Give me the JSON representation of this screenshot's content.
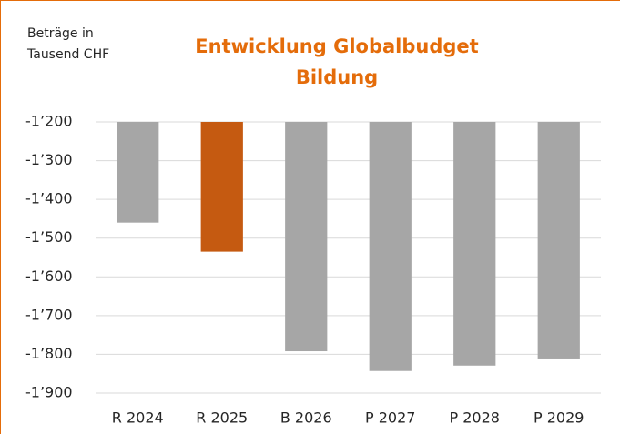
{
  "chart_data": {
    "type": "bar",
    "title": [
      "Entwicklung Globalbudget",
      "Bildung"
    ],
    "unit_label": [
      "Beträge in",
      "Tausend CHF"
    ],
    "categories": [
      "R 2024",
      "R 2025",
      "B 2026",
      "P 2027",
      "P 2028",
      "P 2029"
    ],
    "values": [
      -1460,
      -1535,
      -1792,
      -1843,
      -1829,
      -1813
    ],
    "colors": [
      "#a6a6a6",
      "#c55a11",
      "#a6a6a6",
      "#a6a6a6",
      "#a6a6a6",
      "#a6a6a6"
    ],
    "ylim": [
      -1900,
      -1200
    ],
    "yticks": [
      {
        "value": -1200,
        "label": "-1’200"
      },
      {
        "value": -1300,
        "label": "-1’300"
      },
      {
        "value": -1400,
        "label": "-1’400"
      },
      {
        "value": -1500,
        "label": "-1’500"
      },
      {
        "value": -1600,
        "label": "-1’600"
      },
      {
        "value": -1700,
        "label": "-1’700"
      },
      {
        "value": -1800,
        "label": "-1’800"
      },
      {
        "value": -1900,
        "label": "-1’900"
      }
    ],
    "grid": true
  }
}
